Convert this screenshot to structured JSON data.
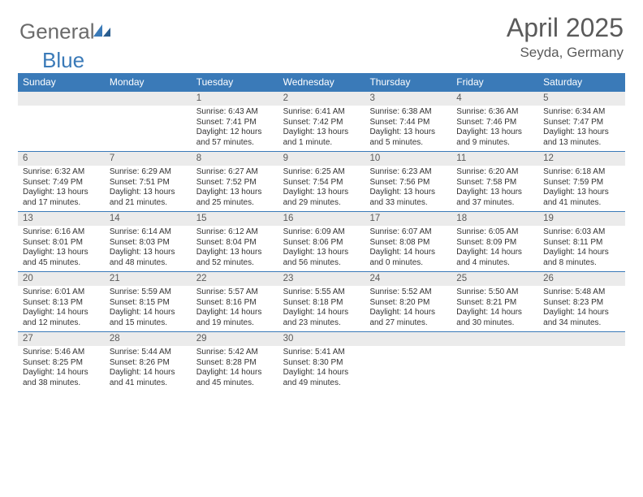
{
  "brand": {
    "part1": "General",
    "part2": "Blue"
  },
  "title": {
    "month": "April 2025",
    "location": "Seyda, Germany"
  },
  "colors": {
    "header_bg": "#3a7ab8",
    "daynum_bg": "#ebebeb",
    "border": "#3a7ab8",
    "text": "#333333",
    "muted": "#5a5a5a",
    "white": "#ffffff"
  },
  "day_headers": [
    "Sunday",
    "Monday",
    "Tuesday",
    "Wednesday",
    "Thursday",
    "Friday",
    "Saturday"
  ],
  "weeks": [
    [
      {
        "n": "",
        "lines": []
      },
      {
        "n": "",
        "lines": []
      },
      {
        "n": "1",
        "lines": [
          "Sunrise: 6:43 AM",
          "Sunset: 7:41 PM",
          "Daylight: 12 hours and 57 minutes."
        ]
      },
      {
        "n": "2",
        "lines": [
          "Sunrise: 6:41 AM",
          "Sunset: 7:42 PM",
          "Daylight: 13 hours and 1 minute."
        ]
      },
      {
        "n": "3",
        "lines": [
          "Sunrise: 6:38 AM",
          "Sunset: 7:44 PM",
          "Daylight: 13 hours and 5 minutes."
        ]
      },
      {
        "n": "4",
        "lines": [
          "Sunrise: 6:36 AM",
          "Sunset: 7:46 PM",
          "Daylight: 13 hours and 9 minutes."
        ]
      },
      {
        "n": "5",
        "lines": [
          "Sunrise: 6:34 AM",
          "Sunset: 7:47 PM",
          "Daylight: 13 hours and 13 minutes."
        ]
      }
    ],
    [
      {
        "n": "6",
        "lines": [
          "Sunrise: 6:32 AM",
          "Sunset: 7:49 PM",
          "Daylight: 13 hours and 17 minutes."
        ]
      },
      {
        "n": "7",
        "lines": [
          "Sunrise: 6:29 AM",
          "Sunset: 7:51 PM",
          "Daylight: 13 hours and 21 minutes."
        ]
      },
      {
        "n": "8",
        "lines": [
          "Sunrise: 6:27 AM",
          "Sunset: 7:52 PM",
          "Daylight: 13 hours and 25 minutes."
        ]
      },
      {
        "n": "9",
        "lines": [
          "Sunrise: 6:25 AM",
          "Sunset: 7:54 PM",
          "Daylight: 13 hours and 29 minutes."
        ]
      },
      {
        "n": "10",
        "lines": [
          "Sunrise: 6:23 AM",
          "Sunset: 7:56 PM",
          "Daylight: 13 hours and 33 minutes."
        ]
      },
      {
        "n": "11",
        "lines": [
          "Sunrise: 6:20 AM",
          "Sunset: 7:58 PM",
          "Daylight: 13 hours and 37 minutes."
        ]
      },
      {
        "n": "12",
        "lines": [
          "Sunrise: 6:18 AM",
          "Sunset: 7:59 PM",
          "Daylight: 13 hours and 41 minutes."
        ]
      }
    ],
    [
      {
        "n": "13",
        "lines": [
          "Sunrise: 6:16 AM",
          "Sunset: 8:01 PM",
          "Daylight: 13 hours and 45 minutes."
        ]
      },
      {
        "n": "14",
        "lines": [
          "Sunrise: 6:14 AM",
          "Sunset: 8:03 PM",
          "Daylight: 13 hours and 48 minutes."
        ]
      },
      {
        "n": "15",
        "lines": [
          "Sunrise: 6:12 AM",
          "Sunset: 8:04 PM",
          "Daylight: 13 hours and 52 minutes."
        ]
      },
      {
        "n": "16",
        "lines": [
          "Sunrise: 6:09 AM",
          "Sunset: 8:06 PM",
          "Daylight: 13 hours and 56 minutes."
        ]
      },
      {
        "n": "17",
        "lines": [
          "Sunrise: 6:07 AM",
          "Sunset: 8:08 PM",
          "Daylight: 14 hours and 0 minutes."
        ]
      },
      {
        "n": "18",
        "lines": [
          "Sunrise: 6:05 AM",
          "Sunset: 8:09 PM",
          "Daylight: 14 hours and 4 minutes."
        ]
      },
      {
        "n": "19",
        "lines": [
          "Sunrise: 6:03 AM",
          "Sunset: 8:11 PM",
          "Daylight: 14 hours and 8 minutes."
        ]
      }
    ],
    [
      {
        "n": "20",
        "lines": [
          "Sunrise: 6:01 AM",
          "Sunset: 8:13 PM",
          "Daylight: 14 hours and 12 minutes."
        ]
      },
      {
        "n": "21",
        "lines": [
          "Sunrise: 5:59 AM",
          "Sunset: 8:15 PM",
          "Daylight: 14 hours and 15 minutes."
        ]
      },
      {
        "n": "22",
        "lines": [
          "Sunrise: 5:57 AM",
          "Sunset: 8:16 PM",
          "Daylight: 14 hours and 19 minutes."
        ]
      },
      {
        "n": "23",
        "lines": [
          "Sunrise: 5:55 AM",
          "Sunset: 8:18 PM",
          "Daylight: 14 hours and 23 minutes."
        ]
      },
      {
        "n": "24",
        "lines": [
          "Sunrise: 5:52 AM",
          "Sunset: 8:20 PM",
          "Daylight: 14 hours and 27 minutes."
        ]
      },
      {
        "n": "25",
        "lines": [
          "Sunrise: 5:50 AM",
          "Sunset: 8:21 PM",
          "Daylight: 14 hours and 30 minutes."
        ]
      },
      {
        "n": "26",
        "lines": [
          "Sunrise: 5:48 AM",
          "Sunset: 8:23 PM",
          "Daylight: 14 hours and 34 minutes."
        ]
      }
    ],
    [
      {
        "n": "27",
        "lines": [
          "Sunrise: 5:46 AM",
          "Sunset: 8:25 PM",
          "Daylight: 14 hours and 38 minutes."
        ]
      },
      {
        "n": "28",
        "lines": [
          "Sunrise: 5:44 AM",
          "Sunset: 8:26 PM",
          "Daylight: 14 hours and 41 minutes."
        ]
      },
      {
        "n": "29",
        "lines": [
          "Sunrise: 5:42 AM",
          "Sunset: 8:28 PM",
          "Daylight: 14 hours and 45 minutes."
        ]
      },
      {
        "n": "30",
        "lines": [
          "Sunrise: 5:41 AM",
          "Sunset: 8:30 PM",
          "Daylight: 14 hours and 49 minutes."
        ]
      },
      {
        "n": "",
        "lines": []
      },
      {
        "n": "",
        "lines": []
      },
      {
        "n": "",
        "lines": []
      }
    ]
  ]
}
